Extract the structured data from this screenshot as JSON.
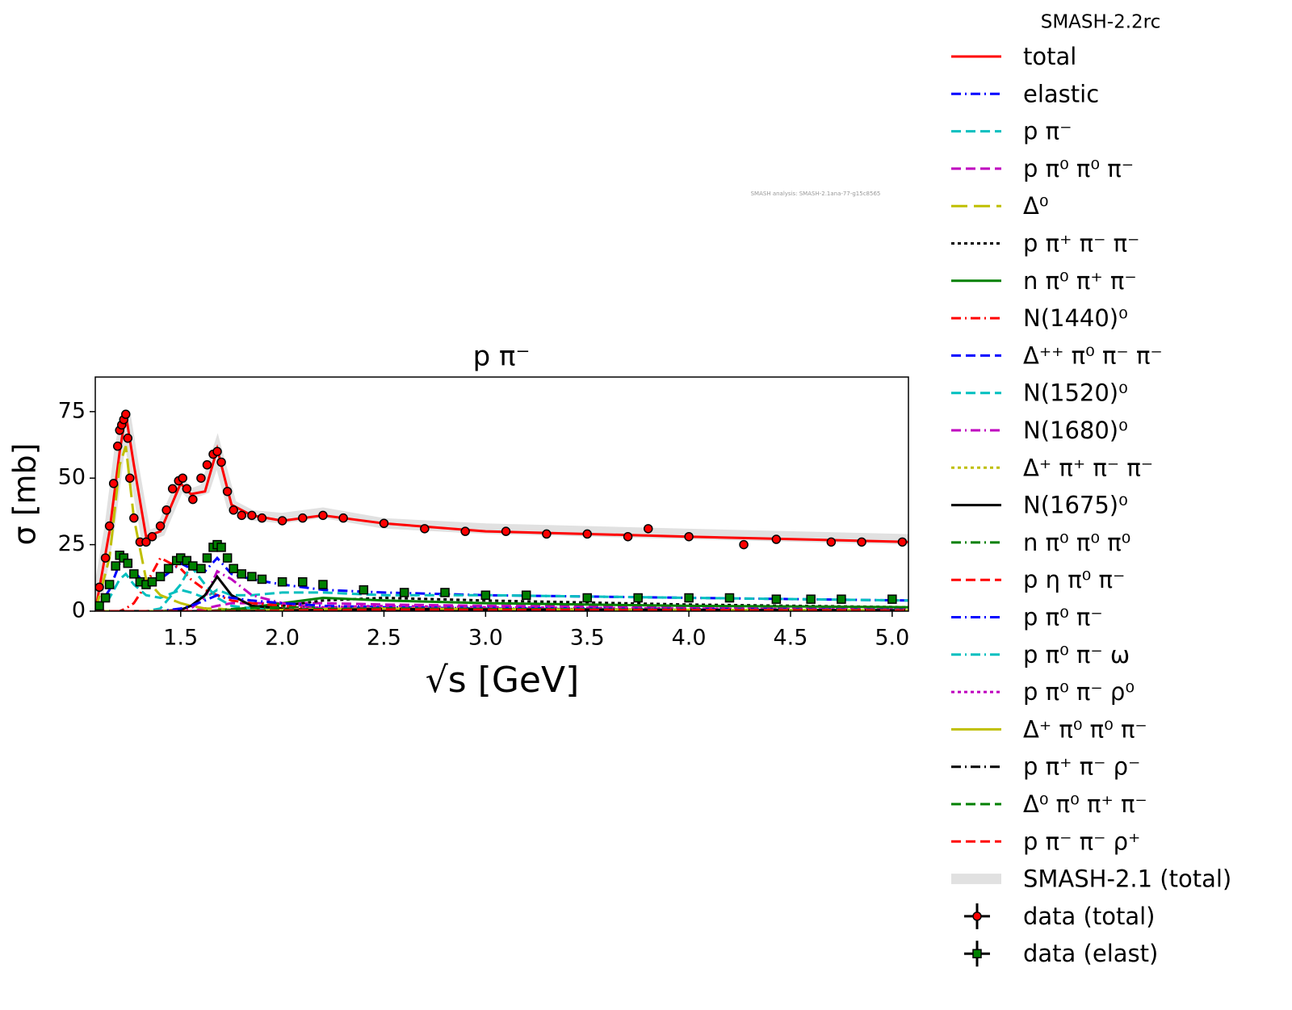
{
  "chart_data": {
    "type": "line",
    "title": "p π⁻",
    "top_label": "SMASH-2.2rc",
    "annotation": "SMASH analysis: SMASH-2.1ana-77-g15c8565",
    "xlabel": "√s [GeV]",
    "ylabel": "σ [mb]",
    "xlim": [
      1.08,
      5.08
    ],
    "ylim": [
      0,
      88
    ],
    "xticks": [
      1.5,
      {
        "value": 2,
        "label": "2.0"
      },
      2.5,
      {
        "value": 3,
        "label": "3.0"
      },
      3.5,
      {
        "value": 4,
        "label": "4.0"
      },
      4.5,
      {
        "value": 5,
        "label": "5.0"
      }
    ],
    "yticks": [
      0,
      25,
      50,
      75
    ],
    "x": [
      1.08,
      1.15,
      1.2,
      1.23,
      1.27,
      1.33,
      1.4,
      1.5,
      1.55,
      1.62,
      1.68,
      1.75,
      1.85,
      2.0,
      2.2,
      2.5,
      3.0,
      4.0,
      5.08
    ],
    "series": [
      {
        "name": "total",
        "color": "#ff0000",
        "dash": "solid",
        "values": [
          0,
          30,
          60,
          74,
          55,
          28,
          30,
          48,
          44,
          45,
          61,
          40,
          36,
          34,
          36,
          33,
          30,
          28,
          26
        ]
      },
      {
        "name": "elastic",
        "color": "#0000ff",
        "dash": "dashdot",
        "values": [
          0,
          8,
          18,
          20,
          15,
          10,
          12,
          18,
          16,
          15,
          20,
          14,
          12,
          10,
          8,
          7,
          6,
          5,
          4
        ]
      },
      {
        "name": "p π⁻",
        "color": "#00bfbf",
        "dash": "dash",
        "values": [
          0,
          5,
          12,
          14,
          10,
          6,
          5,
          8,
          7,
          5,
          8,
          6,
          6,
          7,
          7,
          6,
          6,
          5,
          4
        ]
      },
      {
        "name": "p π⁰ π⁰ π⁻",
        "color": "#bf00bf",
        "dash": "dash",
        "values": [
          0,
          0,
          0,
          0,
          0,
          0,
          0,
          0,
          0,
          1,
          2,
          3,
          3,
          3,
          3,
          2.5,
          2,
          1.5,
          1
        ]
      },
      {
        "name": "Δ⁰",
        "color": "#bfbf00",
        "dash": "longdash",
        "values": [
          0,
          20,
          55,
          62,
          35,
          12,
          6,
          3,
          2,
          1,
          1,
          0.5,
          0.3,
          0.2,
          0.1,
          0,
          0,
          0,
          0
        ]
      },
      {
        "name": "p π⁺ π⁻ π⁻",
        "color": "#000000",
        "dash": "dot",
        "values": [
          0,
          0,
          0,
          0,
          0,
          0,
          0,
          0,
          0,
          0,
          0,
          0.5,
          1,
          2,
          4,
          5,
          4,
          2.5,
          1.5
        ]
      },
      {
        "name": "n π⁰ π⁺ π⁻",
        "color": "#008000",
        "dash": "solid",
        "values": [
          0,
          0,
          0,
          0,
          0,
          0,
          0,
          0,
          0,
          0,
          0,
          0.5,
          1.5,
          3,
          5,
          4,
          3,
          2,
          1.5
        ]
      },
      {
        "name": "N(1440)⁰",
        "color": "#ff0000",
        "dash": "dashdot",
        "values": [
          0,
          0,
          0,
          1,
          3,
          10,
          20,
          16,
          12,
          8,
          6,
          4,
          3,
          2,
          1,
          0.5,
          0.3,
          0.1,
          0
        ]
      },
      {
        "name": "Δ⁺⁺ π⁰ π⁻ π⁻",
        "color": "#0000ff",
        "dash": "dash",
        "values": [
          0,
          0,
          0,
          0,
          0,
          0,
          0,
          0,
          0,
          0,
          0,
          0,
          0,
          0.5,
          1,
          1.5,
          1.2,
          0.8,
          0.5
        ]
      },
      {
        "name": "N(1520)⁰",
        "color": "#00bfbf",
        "dash": "dash",
        "values": [
          0,
          0,
          0,
          0,
          0,
          0,
          1,
          10,
          17,
          10,
          5,
          2,
          1,
          0.5,
          0.2,
          0,
          0,
          0,
          0
        ]
      },
      {
        "name": "N(1680)⁰",
        "color": "#bf00bf",
        "dash": "dashdot",
        "values": [
          0,
          0,
          0,
          0,
          0,
          0,
          0,
          0.5,
          1,
          5,
          15,
          12,
          6,
          3,
          1,
          0.5,
          0,
          0,
          0
        ]
      },
      {
        "name": "Δ⁺ π⁺ π⁻ π⁻",
        "color": "#bfbf00",
        "dash": "dot",
        "values": [
          0,
          0,
          0,
          0,
          0,
          0,
          0,
          0,
          0,
          0,
          0,
          0,
          0.2,
          0.5,
          0.8,
          1,
          0.8,
          0.5,
          0.3
        ]
      },
      {
        "name": "N(1675)⁰",
        "color": "#000000",
        "dash": "solid",
        "values": [
          0,
          0,
          0,
          0,
          0,
          0,
          0,
          0.5,
          2,
          6,
          13,
          6,
          2,
          1,
          0.5,
          0,
          0,
          0,
          0
        ]
      },
      {
        "name": "n π⁰ π⁰ π⁰",
        "color": "#008000",
        "dash": "dashdot",
        "values": [
          0,
          0,
          0,
          0,
          0,
          0,
          0,
          0,
          0,
          0,
          0.3,
          0.8,
          1.2,
          1.5,
          1.2,
          1,
          0.8,
          0.5,
          0.3
        ]
      },
      {
        "name": "p η π⁰ π⁻",
        "color": "#ff0000",
        "dash": "dash",
        "values": [
          0,
          0,
          0,
          0,
          0,
          0,
          0,
          0,
          0,
          0,
          0,
          0,
          0,
          0.3,
          0.8,
          1,
          0.8,
          0.5,
          0.3
        ]
      },
      {
        "name": "p π⁰ π⁻",
        "color": "#0000ff",
        "dash": "dashdot",
        "values": [
          0,
          0,
          0,
          0,
          0,
          0,
          0,
          1,
          2,
          4,
          6,
          5,
          4,
          3,
          2,
          1.5,
          1,
          0.5,
          0.3
        ]
      },
      {
        "name": "p π⁰ π⁻ ω",
        "color": "#00bfbf",
        "dash": "dashdot",
        "values": [
          0,
          0,
          0,
          0,
          0,
          0,
          0,
          0,
          0,
          0,
          0,
          0,
          0,
          0,
          0.3,
          0.8,
          0.8,
          0.6,
          0.4
        ]
      },
      {
        "name": "p π⁰ π⁻ ρ⁰",
        "color": "#bf00bf",
        "dash": "dot",
        "values": [
          0,
          0,
          0,
          0,
          0,
          0,
          0,
          0,
          0,
          0,
          0,
          0,
          0,
          0.5,
          1.5,
          2,
          1.5,
          1,
          0.6
        ]
      },
      {
        "name": "Δ⁺ π⁰ π⁰ π⁻",
        "color": "#bfbf00",
        "dash": "solid",
        "values": [
          0,
          0,
          0,
          0,
          0,
          0,
          0,
          0,
          0,
          0,
          0,
          0,
          0.2,
          0.5,
          0.8,
          1,
          0.8,
          0.5,
          0.3
        ]
      },
      {
        "name": "p π⁺ π⁻ ρ⁻",
        "color": "#000000",
        "dash": "dashdot",
        "values": [
          0,
          0,
          0,
          0,
          0,
          0,
          0,
          0,
          0,
          0,
          0,
          0,
          0,
          0.2,
          0.5,
          0.8,
          0.7,
          0.5,
          0.3
        ]
      },
      {
        "name": "Δ⁰ π⁰ π⁺ π⁻",
        "color": "#008000",
        "dash": "dash",
        "values": [
          0,
          0,
          0,
          0,
          0,
          0,
          0,
          0,
          0,
          0,
          0,
          0,
          0.2,
          0.5,
          0.8,
          1,
          0.8,
          0.5,
          0.3
        ]
      },
      {
        "name": "p π⁻ π⁻ ρ⁺",
        "color": "#ff0000",
        "dash": "dash",
        "values": [
          0,
          0,
          0,
          0,
          0,
          0,
          0,
          0,
          0,
          0,
          0,
          0,
          0,
          0.2,
          0.4,
          0.6,
          0.5,
          0.4,
          0.2
        ]
      },
      {
        "name": "SMASH-2.1 (total)",
        "color": "#d9d9d9",
        "dash": "band",
        "values": [
          0,
          31,
          61,
          73,
          54,
          28,
          30,
          48,
          44,
          46,
          60,
          40,
          36,
          35,
          37,
          33,
          31,
          29,
          27
        ]
      }
    ],
    "points": [
      {
        "name": "data (total)",
        "color": "#ff0000",
        "marker": "circle",
        "x": [
          1.1,
          1.13,
          1.15,
          1.17,
          1.19,
          1.2,
          1.21,
          1.22,
          1.23,
          1.24,
          1.25,
          1.27,
          1.3,
          1.33,
          1.36,
          1.4,
          1.43,
          1.46,
          1.49,
          1.51,
          1.53,
          1.56,
          1.6,
          1.63,
          1.66,
          1.68,
          1.7,
          1.73,
          1.76,
          1.8,
          1.85,
          1.9,
          2.0,
          2.1,
          2.2,
          2.3,
          2.5,
          2.7,
          2.9,
          3.1,
          3.3,
          3.5,
          3.7,
          3.8,
          4.0,
          4.27,
          4.43,
          4.7,
          4.85,
          5.05
        ],
        "y": [
          9,
          20,
          32,
          48,
          62,
          68,
          70,
          72,
          74,
          65,
          50,
          35,
          26,
          26,
          28,
          32,
          38,
          46,
          49,
          50,
          46,
          42,
          50,
          55,
          59,
          60,
          56,
          45,
          38,
          36,
          36,
          35,
          34,
          35,
          36,
          35,
          33,
          31,
          30,
          30,
          29,
          29,
          28,
          31,
          28,
          25,
          27,
          26,
          26,
          26
        ]
      },
      {
        "name": "data (elast)",
        "color": "#008000",
        "marker": "square",
        "x": [
          1.1,
          1.13,
          1.15,
          1.18,
          1.2,
          1.22,
          1.24,
          1.27,
          1.3,
          1.33,
          1.36,
          1.4,
          1.44,
          1.48,
          1.5,
          1.53,
          1.56,
          1.6,
          1.63,
          1.66,
          1.68,
          1.7,
          1.73,
          1.76,
          1.8,
          1.85,
          1.9,
          2.0,
          2.1,
          2.2,
          2.4,
          2.6,
          2.8,
          3.0,
          3.2,
          3.5,
          3.75,
          4.0,
          4.2,
          4.43,
          4.6,
          4.75,
          5.0
        ],
        "y": [
          2,
          5,
          10,
          17,
          21,
          20,
          18,
          14,
          11,
          10,
          11,
          13,
          16,
          19,
          20,
          19,
          17,
          16,
          20,
          24,
          25,
          24,
          20,
          16,
          14,
          13,
          12,
          11,
          11,
          10,
          8,
          7,
          7,
          6,
          6,
          5,
          5,
          5,
          5,
          4.5,
          4.5,
          4.5,
          4.5
        ]
      }
    ]
  }
}
